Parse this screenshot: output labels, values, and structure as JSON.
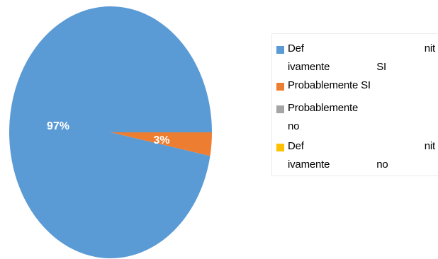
{
  "chart_data": {
    "type": "pie",
    "categories": [
      "Def nit ivamente SI",
      "Probablemente SI",
      "Probablemente no",
      "Def nit ivamente no"
    ],
    "values": [
      97,
      3,
      0,
      0
    ],
    "value_labels": [
      "97%",
      "3%",
      "",
      ""
    ],
    "colors": [
      "#5b9bd5",
      "#ed7d31",
      "#a5a5a5",
      "#ffc000"
    ],
    "legend_position": "right",
    "title": ""
  },
  "legend": {
    "items": [
      {
        "label": "Def nit ivamente SI",
        "color": "#5b9bd5"
      },
      {
        "label": "Probablemente SI",
        "color": "#ed7d31"
      },
      {
        "label": "Probablemente no",
        "color": "#a5a5a5"
      },
      {
        "label": "Def nit ivamente no",
        "color": "#ffc000"
      }
    ]
  }
}
